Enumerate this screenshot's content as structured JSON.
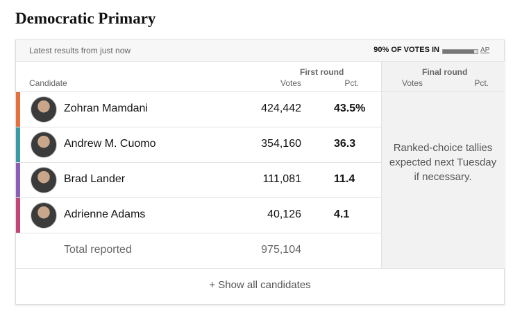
{
  "title": "Democratic Primary",
  "header": {
    "latest": "Latest results from just now",
    "votes_in": "90% OF VOTES IN",
    "progress": 90,
    "source": "AP"
  },
  "columns": {
    "candidate": "Candidate",
    "first_round": "First round",
    "final_round": "Final round",
    "votes": "Votes",
    "pct": "Pct.",
    "final_votes": "Votes",
    "final_pct": "Pct."
  },
  "rows": [
    {
      "name": "Zohran Mamdani",
      "votes": "424,442",
      "pct": "43.5%",
      "color": "#e2713f"
    },
    {
      "name": "Andrew M. Cuomo",
      "votes": "354,160",
      "pct": "36.3",
      "color": "#3a9aa6"
    },
    {
      "name": "Brad Lander",
      "votes": "111,081",
      "pct": "11.4",
      "color": "#8b5fb8"
    },
    {
      "name": "Adrienne Adams",
      "votes": "40,126",
      "pct": "4.1",
      "color": "#c24777"
    }
  ],
  "total": {
    "label": "Total reported",
    "votes": "975,104"
  },
  "final_note": "Ranked-choice tallies expected next Tuesday if necessary.",
  "show_all": "+ Show all candidates"
}
